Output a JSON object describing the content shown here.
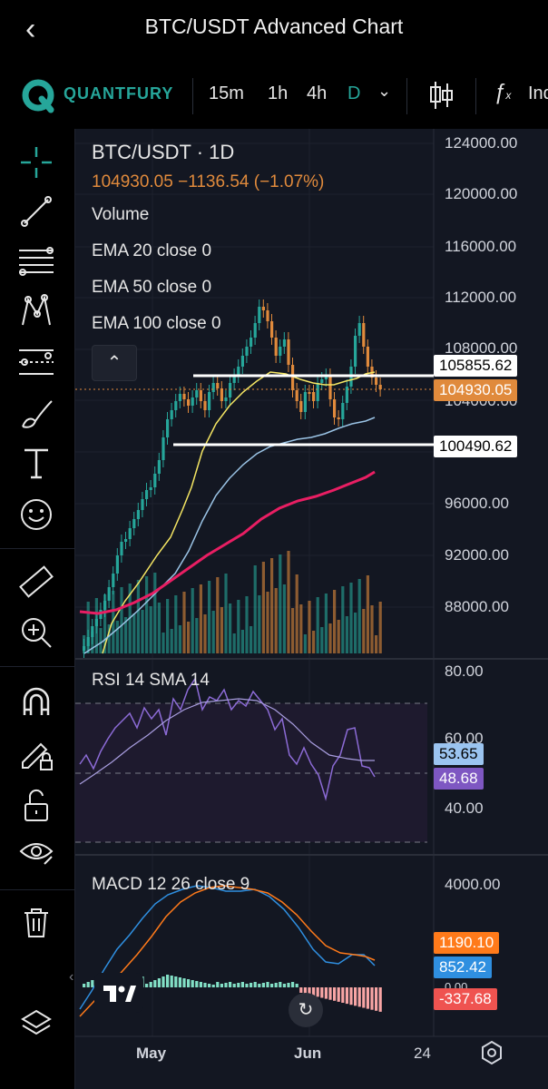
{
  "header": {
    "title": "BTC/USDT Advanced Chart",
    "back_icon": "chevron-left-icon"
  },
  "toolbar": {
    "brand": "QUANTFURY",
    "timeframes": [
      "15m",
      "1h",
      "4h",
      "D"
    ],
    "active_timeframe": "D",
    "indicators_label": "Ind"
  },
  "sidebar": {
    "tools": [
      "crosshair-icon",
      "trendline-icon",
      "fib-retracement-icon",
      "pattern-icon",
      "prediction-icon",
      "brush-icon",
      "text-icon",
      "emoji-icon",
      "ruler-icon",
      "zoom-in-icon",
      "magnet-icon",
      "lock-drawing-icon",
      "unlock-icon",
      "eye-icon",
      "trash-icon",
      "layers-icon"
    ]
  },
  "main_pane": {
    "symbol": "BTC/USDT · 1D",
    "price_line": "104930.05  −1136.54 (−1.07%)",
    "indicators": [
      "Volume",
      "EMA 20 close 0",
      "EMA 50 close 0",
      "EMA 100 close 0"
    ],
    "price_axis": [
      "124000.00",
      "120000.00",
      "116000.00",
      "112000.00",
      "108000.00",
      "104000.00",
      "100000.00",
      "96000.00",
      "92000.00",
      "88000.00"
    ],
    "tags": {
      "resistance": "105855.62",
      "last": "104930.05",
      "support": "100490.62"
    }
  },
  "rsi_pane": {
    "label": "RSI 14 SMA 14",
    "axis": [
      "80.00",
      "60.00",
      "40.00"
    ],
    "tags": {
      "sma": "53.65",
      "rsi": "48.68"
    }
  },
  "macd_pane": {
    "label": "MACD 12 26 close 9",
    "axis": [
      "4000.00",
      "0.00"
    ],
    "tags": {
      "signal": "1190.10",
      "macd": "852.42",
      "hist": "-337.68"
    }
  },
  "time_axis": [
    "May",
    "Jun",
    "24"
  ],
  "colors": {
    "up": "#26a69a",
    "down": "#e08a3c",
    "ema20": "#f5e663",
    "ema50": "#9bc4e6",
    "ema100": "#e91e63",
    "rsi": "#8c6bd6",
    "macd_line": "#2f8fe0",
    "signal": "#ff7a1a",
    "brand": "#26a69a"
  }
}
